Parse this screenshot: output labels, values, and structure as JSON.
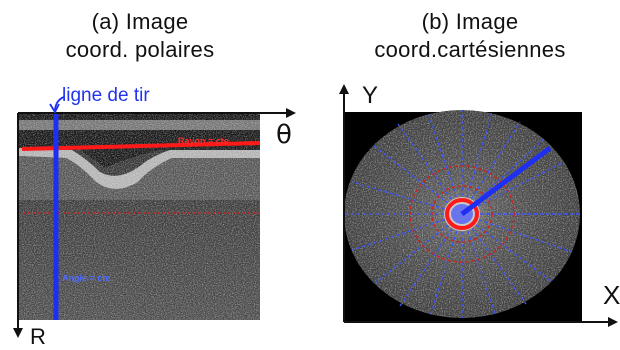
{
  "panel_a": {
    "title_line1": "(a) Image",
    "title_line2": "coord. polaires",
    "ligne_label": "ligne de tir",
    "rayon_label": "Rayon = cte",
    "angle_label": "Angle = cte",
    "theta_axis": "θ",
    "r_axis": "R"
  },
  "panel_b": {
    "title_line1": "(b) Image",
    "title_line2": "coord.cartésiennes",
    "y_axis": "Y",
    "x_axis": "X"
  },
  "colors": {
    "ray_line": "#1e2ef2",
    "radius_line": "#ff1a1a",
    "dotted_blue": "#3c54ff",
    "dotted_red": "#d42020",
    "image_background": "#000000",
    "axis": "#111111"
  }
}
